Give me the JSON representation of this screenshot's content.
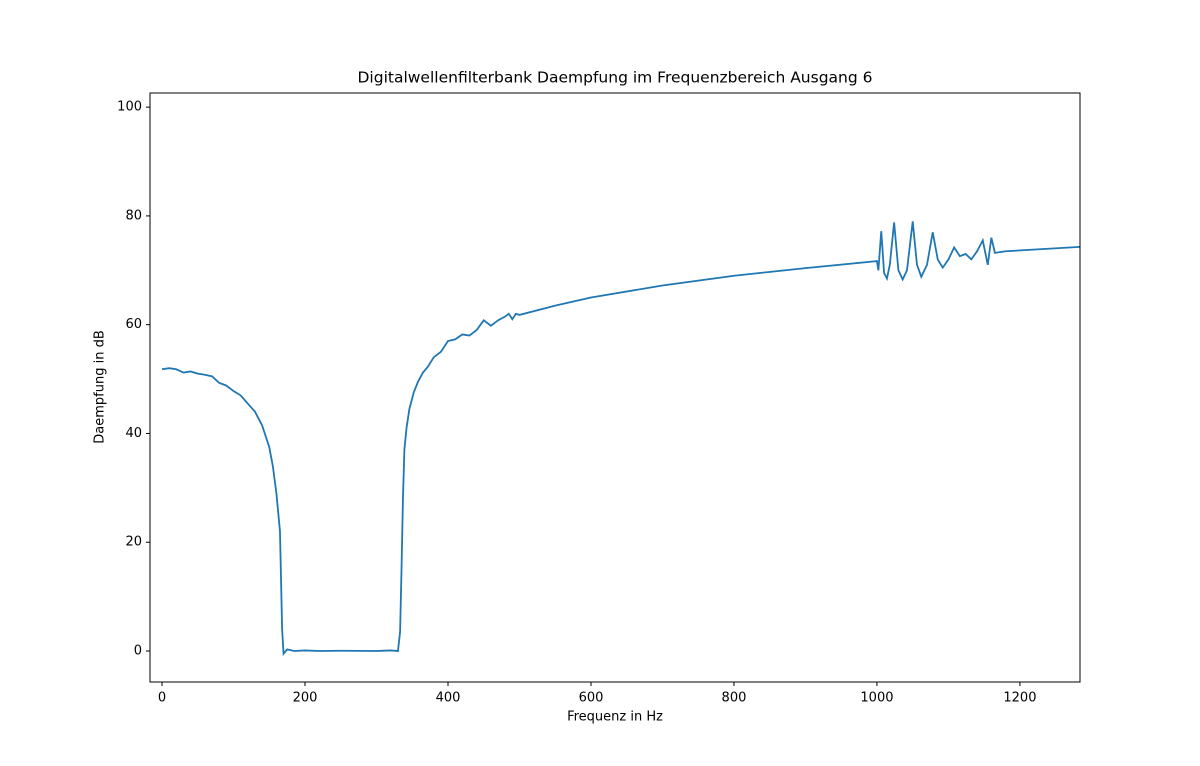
{
  "chart_data": {
    "type": "line",
    "title": "Digitalwellenfilterbank Daempfung im Frequenzbereich Ausgang 6",
    "x_label": "Frequenz in Hz",
    "y_label": "Daempfung in dB",
    "x": [
      0,
      10,
      20,
      30,
      40,
      50,
      60,
      70,
      80,
      90,
      100,
      110,
      120,
      130,
      140,
      150,
      155,
      160,
      165,
      167,
      168,
      170,
      175,
      185,
      200,
      220,
      250,
      300,
      320,
      330,
      333,
      335,
      337,
      339,
      342,
      346,
      352,
      358,
      365,
      372,
      380,
      390,
      400,
      410,
      420,
      430,
      440,
      450,
      460,
      470,
      480,
      485,
      490,
      495,
      500,
      550,
      600,
      700,
      800,
      900,
      1000,
      1002,
      1006,
      1010,
      1014,
      1018,
      1024,
      1030,
      1036,
      1042,
      1050,
      1056,
      1062,
      1070,
      1078,
      1085,
      1092,
      1100,
      1108,
      1116,
      1124,
      1132,
      1140,
      1148,
      1155,
      1160,
      1165,
      1180,
      1284
    ],
    "series": [
      {
        "name": "Ausgang 6",
        "color": "#1f77b4",
        "values": [
          51.8,
          52.0,
          51.8,
          51.2,
          51.4,
          51.0,
          50.8,
          50.5,
          49.3,
          48.8,
          47.8,
          47.0,
          45.5,
          44.0,
          41.5,
          37.5,
          34,
          29,
          22,
          10,
          4,
          -0.5,
          0.3,
          0,
          0.1,
          0,
          0.05,
          0,
          0.1,
          0,
          3.5,
          15,
          28,
          37,
          41,
          44.5,
          47.5,
          49.5,
          51.2,
          52.3,
          54,
          55,
          57,
          57.3,
          58.2,
          58,
          59,
          60.8,
          59.8,
          60.8,
          61.5,
          62,
          61,
          62,
          61.8,
          63.5,
          65,
          67.2,
          69,
          70.4,
          71.7,
          70,
          77.2,
          69.5,
          68.5,
          71,
          78.8,
          70,
          68.3,
          70,
          79,
          71,
          68.8,
          71,
          77,
          72,
          70.5,
          72,
          74.2,
          72.6,
          73,
          72,
          73.5,
          75.5,
          71,
          76,
          73.2,
          73.5,
          74.3
        ]
      }
    ],
    "xlim": [
      -16.8,
      1284
    ],
    "ylim": [
      -5.7,
      102.6
    ],
    "xticks": [
      0,
      200,
      400,
      600,
      800,
      1000,
      1200
    ],
    "yticks": [
      0,
      20,
      40,
      60,
      80,
      100
    ]
  }
}
